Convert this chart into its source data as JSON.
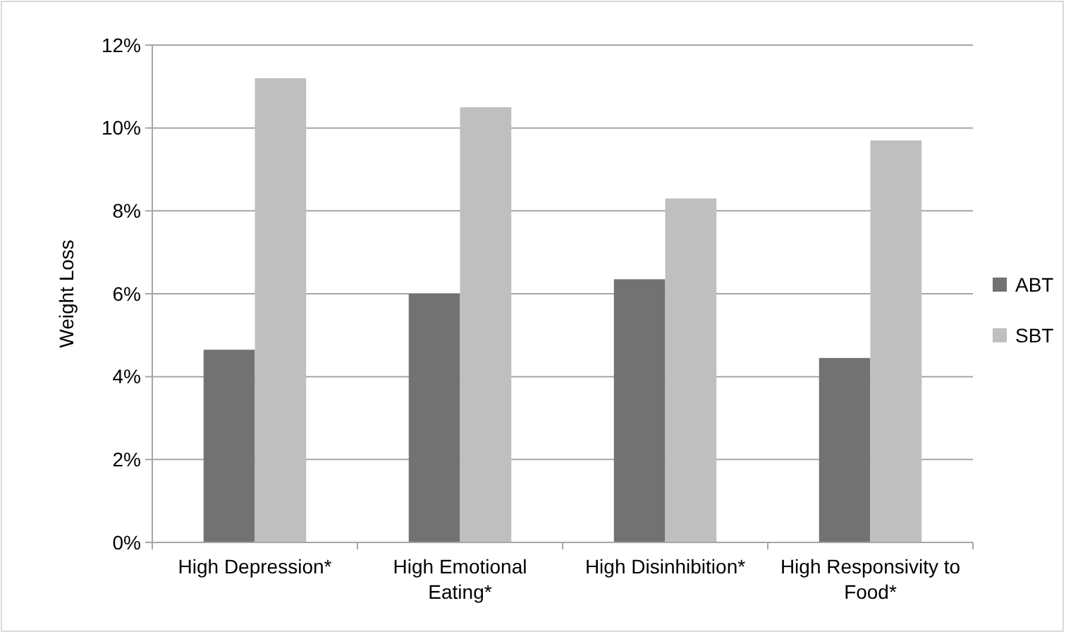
{
  "chart_data": {
    "type": "bar",
    "ylabel": "Weight Loss",
    "categories": [
      "High Depression*",
      "High Emotional Eating*",
      "High Disinhibition*",
      "High Responsivity to Food*"
    ],
    "series": [
      {
        "name": "ABT",
        "color": "#727272",
        "values": [
          4.65,
          6.0,
          6.35,
          4.45
        ]
      },
      {
        "name": "SBT",
        "color": "#bfbfbf",
        "values": [
          11.2,
          10.5,
          8.3,
          9.7
        ]
      }
    ],
    "ylim": [
      0,
      12
    ],
    "yticks": [
      {
        "value": 0,
        "label": "0%"
      },
      {
        "value": 2,
        "label": "2%"
      },
      {
        "value": 4,
        "label": "4%"
      },
      {
        "value": 6,
        "label": "6%"
      },
      {
        "value": 8,
        "label": "8%"
      },
      {
        "value": 10,
        "label": "10%"
      },
      {
        "value": 12,
        "label": "12%"
      }
    ],
    "grid": "y",
    "legend": "right"
  }
}
